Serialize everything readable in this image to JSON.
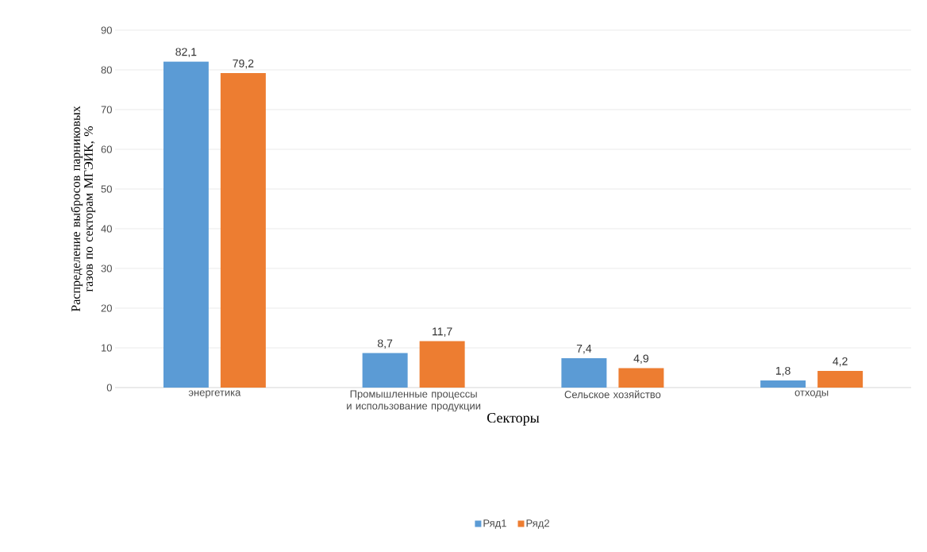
{
  "chart_data": {
    "type": "bar",
    "xlabel": "Секторы",
    "ylabel": "Распределение выбросов парниковых газов по секторам МГЭИК, %",
    "categories": [
      "энергетика",
      "Промышленные процессы и использование продукции",
      "Сельское хозяйство",
      "отходы"
    ],
    "series": [
      {
        "name": "Ряд1",
        "color": "#5b9bd5",
        "values": [
          82.1,
          8.7,
          7.4,
          1.8
        ],
        "value_labels": [
          "82,1",
          "8,7",
          "7,4",
          "1,8"
        ]
      },
      {
        "name": "Ряд2",
        "color": "#ed7d31",
        "values": [
          79.2,
          11.7,
          4.9,
          4.2
        ],
        "value_labels": [
          "79,2",
          "11,7",
          "4,9",
          "4,2"
        ]
      }
    ],
    "ylim": [
      0,
      90
    ],
    "yticks": [
      0,
      10,
      20,
      30,
      40,
      50,
      60,
      70,
      80,
      90
    ],
    "grid": "y",
    "legend": "bottom"
  }
}
